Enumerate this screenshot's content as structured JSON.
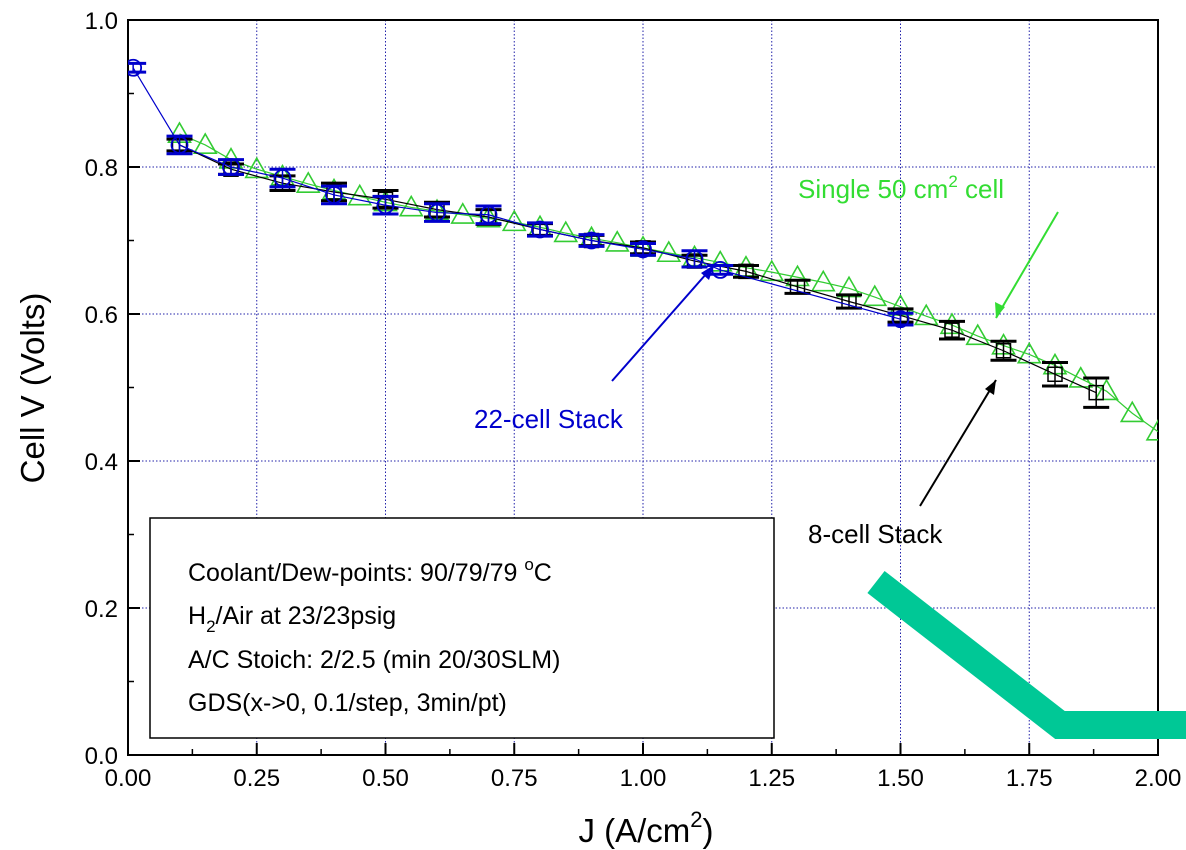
{
  "chart_data": {
    "type": "scatter",
    "xlabel": "J (A/cm²)",
    "xlabel_parts": {
      "base": "J (A/cm",
      "sup": "2",
      "end": ")"
    },
    "ylabel": "Cell V (Volts)",
    "xlim": [
      0,
      2.0
    ],
    "ylim": [
      0,
      1.0
    ],
    "x_ticks": [
      0.0,
      0.25,
      0.5,
      0.75,
      1.0,
      1.25,
      1.5,
      1.75,
      2.0
    ],
    "x_tick_labels": [
      "0.00",
      "0.25",
      "0.50",
      "0.75",
      "1.00",
      "1.25",
      "1.50",
      "1.75",
      "2.00"
    ],
    "y_ticks": [
      0.0,
      0.2,
      0.4,
      0.6,
      0.8,
      1.0
    ],
    "y_tick_labels": [
      "0.0",
      "0.2",
      "0.4",
      "0.6",
      "0.8",
      "1.0"
    ],
    "grid": true,
    "series": [
      {
        "name": "22-cell Stack",
        "color": "#0000cc",
        "marker": "circle",
        "x": [
          0.01,
          0.1,
          0.2,
          0.3,
          0.4,
          0.5,
          0.6,
          0.7,
          0.8,
          0.9,
          1.0,
          1.1,
          1.15,
          1.5
        ],
        "y": [
          0.935,
          0.83,
          0.8,
          0.785,
          0.762,
          0.748,
          0.738,
          0.735,
          0.715,
          0.7,
          0.688,
          0.675,
          0.66,
          0.593
        ],
        "err": [
          0.006,
          0.012,
          0.01,
          0.012,
          0.012,
          0.012,
          0.012,
          0.012,
          0.009,
          0.008,
          0.008,
          0.011,
          0.006,
          0.008
        ]
      },
      {
        "name": "8-cell Stack",
        "color": "#000000",
        "marker": "square",
        "x": [
          0.1,
          0.2,
          0.3,
          0.4,
          0.5,
          0.6,
          0.7,
          0.8,
          0.9,
          1.0,
          1.1,
          1.2,
          1.3,
          1.4,
          1.5,
          1.6,
          1.7,
          1.8,
          1.88
        ],
        "y": [
          0.83,
          0.797,
          0.778,
          0.766,
          0.756,
          0.742,
          0.732,
          0.715,
          0.7,
          0.69,
          0.672,
          0.658,
          0.637,
          0.617,
          0.598,
          0.578,
          0.55,
          0.518,
          0.493
        ],
        "err": [
          0.008,
          0.007,
          0.01,
          0.012,
          0.012,
          0.01,
          0.01,
          0.008,
          0.007,
          0.008,
          0.008,
          0.008,
          0.009,
          0.009,
          0.009,
          0.012,
          0.013,
          0.016,
          0.02
        ]
      },
      {
        "name": "Single 50 cm² cell",
        "color": "#33cc33",
        "marker": "triangle",
        "x": [
          0.1,
          0.15,
          0.2,
          0.25,
          0.3,
          0.35,
          0.4,
          0.45,
          0.5,
          0.55,
          0.6,
          0.65,
          0.7,
          0.75,
          0.8,
          0.85,
          0.9,
          0.95,
          1.0,
          1.05,
          1.1,
          1.15,
          1.2,
          1.25,
          1.3,
          1.35,
          1.4,
          1.45,
          1.5,
          1.55,
          1.6,
          1.65,
          1.7,
          1.75,
          1.8,
          1.85,
          1.9,
          1.95,
          2.0
        ],
        "y": [
          0.845,
          0.83,
          0.81,
          0.797,
          0.787,
          0.777,
          0.768,
          0.76,
          0.752,
          0.745,
          0.74,
          0.735,
          0.73,
          0.725,
          0.718,
          0.71,
          0.703,
          0.697,
          0.69,
          0.683,
          0.677,
          0.67,
          0.663,
          0.657,
          0.65,
          0.643,
          0.635,
          0.623,
          0.61,
          0.597,
          0.585,
          0.57,
          0.557,
          0.545,
          0.53,
          0.512,
          0.495,
          0.465,
          0.44
        ]
      }
    ],
    "annotations": {
      "single_cell_label": {
        "base": "Single 50 cm",
        "sup": "2",
        "end": " cell"
      },
      "stack22_label": "22-cell Stack",
      "stack8_label": "8-cell Stack"
    },
    "info_box": {
      "line1": {
        "base": "Coolant/Dew-points: 90/79/79 ",
        "sup": "o",
        "end": "C"
      },
      "line2": {
        "base": "H",
        "sub": "2",
        "end": "/Air at 23/23psig"
      },
      "line3": "A/C Stoich: 2/2.5 (min 20/30SLM)",
      "line4": "GDS(x->0, 0.1/step, 3min/pt)"
    },
    "colors": {
      "grid": "#2222aa",
      "decoration_stroke": "#00c896"
    }
  }
}
